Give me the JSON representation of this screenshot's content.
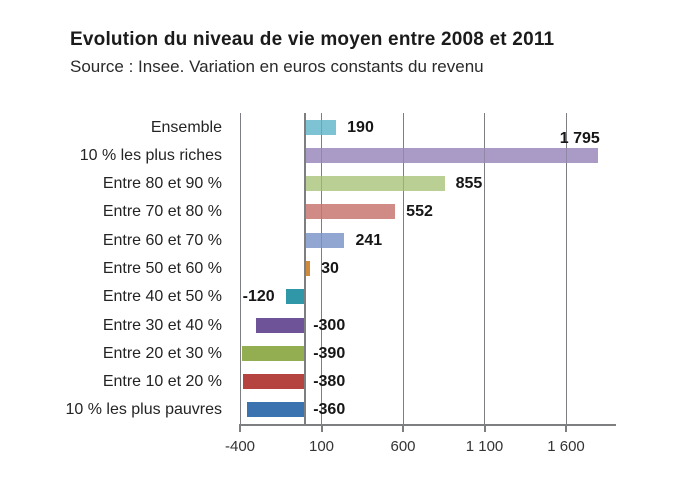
{
  "header": {
    "title": "Evolution du niveau de vie moyen entre 2008 et 2011",
    "subtitle": "Source : Insee. Variation en euros constants du revenu"
  },
  "chart_data": {
    "type": "bar",
    "orientation": "horizontal",
    "title": "Evolution du niveau de vie moyen entre 2008 et 2011",
    "subtitle": "Source : Insee. Variation en euros constants du revenu",
    "categories": [
      "Ensemble",
      "10 % les plus riches",
      "Entre 80 et 90 %",
      "Entre 70 et 80 %",
      "Entre 60 et 70 %",
      "Entre 50 et 60 %",
      "Entre 40 et 50 %",
      "Entre 30 et 40 %",
      "Entre 20 et 30 %",
      "Entre 10 et 20 %",
      "10 % les plus pauvres"
    ],
    "values": [
      190,
      1795,
      855,
      552,
      241,
      30,
      -120,
      -300,
      -390,
      -380,
      -360
    ],
    "value_labels": [
      "190",
      "1 795",
      "855",
      "552",
      "241",
      "30",
      "-120",
      "-300",
      "-390",
      "-380",
      "-360"
    ],
    "bar_colors": [
      "#7EC3D4",
      "#A99BC6",
      "#B9CF93",
      "#D18B87",
      "#91A7D2",
      "#D08A3C",
      "#3097A8",
      "#6E5399",
      "#93AE51",
      "#B5433F",
      "#3B72B0"
    ],
    "label_placements": [
      "right",
      "above-end",
      "right",
      "right",
      "right",
      "right",
      "left-of-end",
      "right-of-axis",
      "right-of-axis",
      "right-of-axis",
      "right-of-axis"
    ],
    "xlabel": "",
    "ylabel": "",
    "legend": "none",
    "x_axis": {
      "min": -400,
      "max": 1905,
      "tick_interval": 500,
      "gridlines": true,
      "ticks": [
        {
          "value": -400,
          "label": "-400"
        },
        {
          "value": 100,
          "label": "100"
        },
        {
          "value": 600,
          "label": "600"
        },
        {
          "value": 1100,
          "label": "1 100"
        },
        {
          "value": 1600,
          "label": "1 600"
        }
      ]
    }
  },
  "style": {
    "gridline_color": "#8b8d8f",
    "axis_color": "#7c7e80",
    "title_color": "#1b1b1b",
    "text_color": "#242424",
    "value_label_color": "#161616",
    "tick_label_color": "#343434",
    "background": "#ffffff"
  }
}
